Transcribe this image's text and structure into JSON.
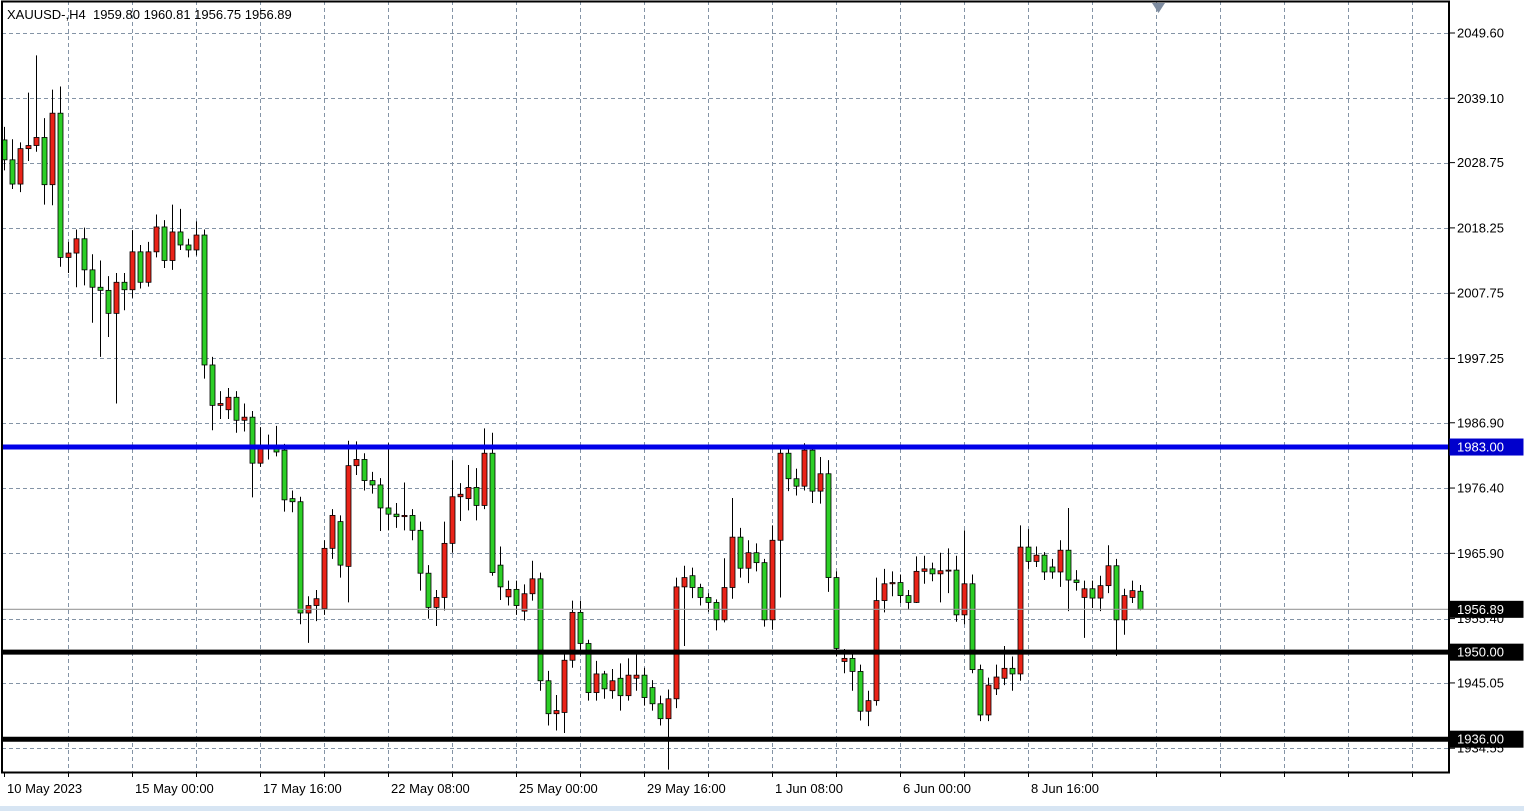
{
  "header": {
    "symbol_line": "XAUUSD-,H4  1959.80 1960.81 1956.75 1956.89",
    "symbol": "XAUUSD-",
    "timeframe": "H4",
    "open": "1959.80",
    "high": "1960.81",
    "low": "1956.75",
    "close": "1956.89"
  },
  "chart_data": {
    "type": "candlestick",
    "title": "XAUUSD- H4 candlestick chart",
    "symbol": "XAUUSD-",
    "timeframe": "H4",
    "legend_position": "none",
    "grid": true,
    "colors": {
      "background": "#ffffff",
      "bull_body": "#ea2318",
      "bear_body": "#2ccf26",
      "candle_outline": "#000000",
      "wick": "#000000",
      "grid": "#8494a6",
      "border": "#000000",
      "bid_line": "#9a9a9a",
      "hline_blue": "#0000e8",
      "hline_black": "#000000",
      "label_box_blue": "#0000cc",
      "label_box_black": "#000000",
      "label_text": "#ffffff",
      "axis_text": "#000000",
      "shift_marker": "#7e8ca0",
      "bottom_strip": "#d7e5f3"
    },
    "y_axis": {
      "tick_labels": [
        "2049.60",
        "2039.10",
        "2028.75",
        "2018.25",
        "2007.75",
        "1997.25",
        "1986.90",
        "1976.40",
        "1965.90",
        "1955.40",
        "1945.05",
        "1934.55"
      ],
      "top_price": 2049.6,
      "bottom_price": 1934.55
    },
    "x_axis": {
      "tick_labels": [
        "10 May 2023",
        "15 May 00:00",
        "17 May 16:00",
        "22 May 08:00",
        "25 May 00:00",
        "29 May 16:00",
        "1 Jun 08:00",
        "6 Jun 00:00",
        "8 Jun 16:00"
      ]
    },
    "hlines": [
      {
        "price": 1983.0,
        "label": "1983.00",
        "color": "blue",
        "thickness": 5
      },
      {
        "price": 1950.0,
        "label": "1950.00",
        "color": "black",
        "thickness": 5
      },
      {
        "price": 1936.0,
        "label": "1936.00",
        "color": "black",
        "thickness": 5
      }
    ],
    "bid": {
      "price": 1956.89,
      "label": "1956.89"
    },
    "candles": [
      [
        2032.4,
        2034.5,
        2027.5,
        2029.2
      ],
      [
        2029.2,
        2032.5,
        2024.5,
        2025.3
      ],
      [
        2025.3,
        2032.0,
        2024.0,
        2031.0
      ],
      [
        2031.0,
        2040.0,
        2029.0,
        2031.5
      ],
      [
        2031.5,
        2046.0,
        2030.5,
        2032.8
      ],
      [
        2032.8,
        2035.9,
        2022.0,
        2025.2
      ],
      [
        2025.2,
        2040.5,
        2021.9,
        2036.7
      ],
      [
        2036.7,
        2041.0,
        2012.0,
        2013.5
      ],
      [
        2013.5,
        2016.0,
        2011.0,
        2014.2
      ],
      [
        2014.2,
        2018.0,
        2008.7,
        2016.5
      ],
      [
        2016.5,
        2018.3,
        2009.0,
        2011.5
      ],
      [
        2011.5,
        2014.0,
        2003.0,
        2008.7
      ],
      [
        2008.7,
        2013.0,
        1997.5,
        2008.2
      ],
      [
        2008.2,
        2010.5,
        2000.7,
        2004.5
      ],
      [
        2004.5,
        2011.0,
        1990.0,
        2009.5
      ],
      [
        2009.5,
        2011.0,
        2005.0,
        2008.3
      ],
      [
        2008.3,
        2017.9,
        2007.0,
        2014.4
      ],
      [
        2014.4,
        2015.5,
        2008.5,
        2009.5
      ],
      [
        2009.5,
        2016.0,
        2008.8,
        2014.4
      ],
      [
        2014.4,
        2020.4,
        2013.5,
        2018.4
      ],
      [
        2018.4,
        2019.5,
        2011.8,
        2013.0
      ],
      [
        2013.0,
        2022.0,
        2011.5,
        2017.6
      ],
      [
        2017.6,
        2021.3,
        2014.7,
        2015.5
      ],
      [
        2015.5,
        2016.5,
        2013.5,
        2014.7
      ],
      [
        2014.7,
        2019.3,
        2013.8,
        2017.1
      ],
      [
        2017.1,
        2018.0,
        1994.0,
        1996.2
      ],
      [
        1996.2,
        1997.5,
        1985.7,
        1989.7
      ],
      [
        1989.7,
        1992.0,
        1987.5,
        1990.0
      ],
      [
        1989.0,
        1992.5,
        1987.5,
        1991.0
      ],
      [
        1991.0,
        1992.0,
        1985.3,
        1987.3
      ],
      [
        1987.3,
        1990.0,
        1985.5,
        1987.8
      ],
      [
        1987.8,
        1988.8,
        1974.9,
        1980.4
      ],
      [
        1980.4,
        1986.2,
        1979.8,
        1983.0
      ],
      [
        1983.0,
        1985.0,
        1981.0,
        1983.3
      ],
      [
        1983.3,
        1986.4,
        1981.5,
        1982.2
      ],
      [
        1982.5,
        1983.5,
        1972.6,
        1974.5
      ],
      [
        1974.7,
        1976.0,
        1972.5,
        1974.2
      ],
      [
        1974.2,
        1975.0,
        1954.5,
        1956.3
      ],
      [
        1956.3,
        1959.0,
        1951.5,
        1957.5
      ],
      [
        1957.5,
        1960.0,
        1955.0,
        1958.6
      ],
      [
        1957.0,
        1968.0,
        1956.0,
        1966.7
      ],
      [
        1966.7,
        1973.0,
        1965.0,
        1972.0
      ],
      [
        1971.0,
        1972.0,
        1962.0,
        1964.0
      ],
      [
        1963.8,
        1984.0,
        1958.0,
        1980.0
      ],
      [
        1980.0,
        1983.9,
        1978.5,
        1981.0
      ],
      [
        1981.0,
        1982.0,
        1976.0,
        1977.6
      ],
      [
        1977.6,
        1979.0,
        1975.5,
        1976.9
      ],
      [
        1976.9,
        1978.0,
        1969.5,
        1973.2
      ],
      [
        1973.2,
        1983.6,
        1969.6,
        1972.2
      ],
      [
        1972.2,
        1974.0,
        1970.0,
        1971.8
      ],
      [
        1971.8,
        1977.3,
        1969.6,
        1972.0
      ],
      [
        1972.0,
        1973.0,
        1968.0,
        1969.6
      ],
      [
        1969.6,
        1971.0,
        1959.9,
        1962.7
      ],
      [
        1962.7,
        1964.0,
        1955.4,
        1957.2
      ],
      [
        1957.2,
        1960.0,
        1954.2,
        1958.8
      ],
      [
        1958.8,
        1971.0,
        1956.7,
        1967.5
      ],
      [
        1967.5,
        1980.9,
        1966.0,
        1975.0
      ],
      [
        1975.0,
        1977.2,
        1971.1,
        1975.4
      ],
      [
        1974.7,
        1980.1,
        1972.8,
        1976.5
      ],
      [
        1976.5,
        1979.6,
        1971.2,
        1973.6
      ],
      [
        1973.6,
        1986.0,
        1973.0,
        1982.0
      ],
      [
        1982.0,
        1985.3,
        1962.3,
        1962.8
      ],
      [
        1964.0,
        1967.0,
        1958.4,
        1960.5
      ],
      [
        1958.9,
        1961.5,
        1957.5,
        1960.1
      ],
      [
        1960.1,
        1961.5,
        1956.0,
        1957.5
      ],
      [
        1956.6,
        1960.9,
        1955.1,
        1959.4
      ],
      [
        1959.4,
        1964.7,
        1958.3,
        1961.8
      ],
      [
        1961.8,
        1962.8,
        1943.8,
        1945.4
      ],
      [
        1945.4,
        1947.0,
        1938.2,
        1940.1
      ],
      [
        1940.1,
        1943.1,
        1937.4,
        1940.6
      ],
      [
        1940.3,
        1950.0,
        1937.0,
        1948.7
      ],
      [
        1948.7,
        1958.3,
        1947.5,
        1956.4
      ],
      [
        1956.4,
        1958.3,
        1950.3,
        1951.4
      ],
      [
        1951.4,
        1952.0,
        1942.2,
        1943.5
      ],
      [
        1943.5,
        1948.6,
        1942.2,
        1946.5
      ],
      [
        1946.5,
        1947.0,
        1942.5,
        1944.1
      ],
      [
        1943.8,
        1947.3,
        1942.5,
        1945.4
      ],
      [
        1945.8,
        1948.2,
        1940.6,
        1943.0
      ],
      [
        1943.0,
        1949.0,
        1942.2,
        1946.3
      ],
      [
        1945.8,
        1950.3,
        1943.8,
        1946.3
      ],
      [
        1946.3,
        1947.5,
        1941.4,
        1942.7
      ],
      [
        1944.3,
        1945.5,
        1940.6,
        1941.7
      ],
      [
        1941.7,
        1943.0,
        1938.2,
        1939.3
      ],
      [
        1939.3,
        1944.0,
        1931.1,
        1942.5
      ],
      [
        1942.5,
        1962.0,
        1941.0,
        1960.5
      ],
      [
        1960.5,
        1963.9,
        1951.0,
        1962.0
      ],
      [
        1962.3,
        1963.6,
        1958.7,
        1960.4
      ],
      [
        1960.4,
        1961.0,
        1957.5,
        1958.8
      ],
      [
        1958.8,
        1959.5,
        1956.5,
        1958.0
      ],
      [
        1958.0,
        1958.5,
        1953.5,
        1955.2
      ],
      [
        1955.2,
        1965.1,
        1954.8,
        1960.4
      ],
      [
        1960.4,
        1974.8,
        1958.6,
        1968.5
      ],
      [
        1968.5,
        1970.0,
        1962.0,
        1963.5
      ],
      [
        1963.5,
        1968.0,
        1961.1,
        1966.0
      ],
      [
        1966.0,
        1967.5,
        1963.0,
        1964.4
      ],
      [
        1964.4,
        1965.0,
        1954.1,
        1955.2
      ],
      [
        1955.2,
        1970.4,
        1953.6,
        1968.0
      ],
      [
        1968.0,
        1982.8,
        1958.8,
        1982.0
      ],
      [
        1982.0,
        1983.3,
        1975.9,
        1977.9
      ],
      [
        1977.9,
        1979.5,
        1975.2,
        1976.7
      ],
      [
        1976.7,
        1983.6,
        1976.0,
        1982.5
      ],
      [
        1982.5,
        1983.0,
        1974.0,
        1975.9
      ],
      [
        1975.9,
        1981.4,
        1973.9,
        1978.7
      ],
      [
        1978.7,
        1980.9,
        1959.7,
        1962.0
      ],
      [
        1962.0,
        1963.0,
        1949.3,
        1950.6
      ],
      [
        1948.5,
        1950.5,
        1946.6,
        1949.0
      ],
      [
        1949.0,
        1950.0,
        1943.8,
        1946.9
      ],
      [
        1946.9,
        1948.0,
        1939.0,
        1940.5
      ],
      [
        1940.5,
        1943.8,
        1938.1,
        1942.2
      ],
      [
        1942.2,
        1962.0,
        1941.4,
        1958.3
      ],
      [
        1958.3,
        1963.4,
        1956.4,
        1961.0
      ],
      [
        1961.0,
        1963.0,
        1959.0,
        1961.2
      ],
      [
        1961.2,
        1962.5,
        1957.9,
        1959.1
      ],
      [
        1959.1,
        1960.0,
        1956.8,
        1958.0
      ],
      [
        1958.0,
        1965.4,
        1957.9,
        1963.0
      ],
      [
        1963.0,
        1965.5,
        1961.0,
        1963.4
      ],
      [
        1963.4,
        1964.4,
        1961.4,
        1962.6
      ],
      [
        1962.6,
        1966.0,
        1958.0,
        1963.1
      ],
      [
        1963.1,
        1966.7,
        1959.5,
        1963.2
      ],
      [
        1963.2,
        1965.5,
        1954.9,
        1956.0
      ],
      [
        1956.0,
        1969.6,
        1954.5,
        1961.0
      ],
      [
        1961.0,
        1962.5,
        1946.6,
        1947.2
      ],
      [
        1947.2,
        1948.0,
        1938.9,
        1939.9
      ],
      [
        1939.9,
        1945.9,
        1938.9,
        1944.7
      ],
      [
        1944.1,
        1948.0,
        1943.1,
        1946.0
      ],
      [
        1945.8,
        1951.0,
        1944.7,
        1947.4
      ],
      [
        1947.4,
        1949.3,
        1943.8,
        1946.5
      ],
      [
        1946.5,
        1970.4,
        1945.4,
        1966.9
      ],
      [
        1966.9,
        1969.8,
        1963.4,
        1964.6
      ],
      [
        1964.6,
        1967.0,
        1963.7,
        1965.6
      ],
      [
        1965.6,
        1966.1,
        1961.6,
        1962.9
      ],
      [
        1963.7,
        1965.0,
        1961.8,
        1962.9
      ],
      [
        1962.9,
        1968.0,
        1960.5,
        1966.4
      ],
      [
        1966.4,
        1973.2,
        1956.6,
        1961.6
      ],
      [
        1961.6,
        1963.2,
        1959.9,
        1961.2
      ],
      [
        1958.8,
        1961.5,
        1952.3,
        1960.2
      ],
      [
        1960.2,
        1961.5,
        1957.1,
        1958.7
      ],
      [
        1958.7,
        1962.3,
        1956.6,
        1960.7
      ],
      [
        1960.7,
        1967.2,
        1959.5,
        1963.9
      ],
      [
        1963.9,
        1965.0,
        1949.4,
        1955.2
      ],
      [
        1955.2,
        1960.2,
        1952.8,
        1959.1
      ],
      [
        1958.8,
        1961.5,
        1957.9,
        1959.9
      ],
      [
        1959.8,
        1960.81,
        1956.75,
        1956.89
      ]
    ]
  }
}
